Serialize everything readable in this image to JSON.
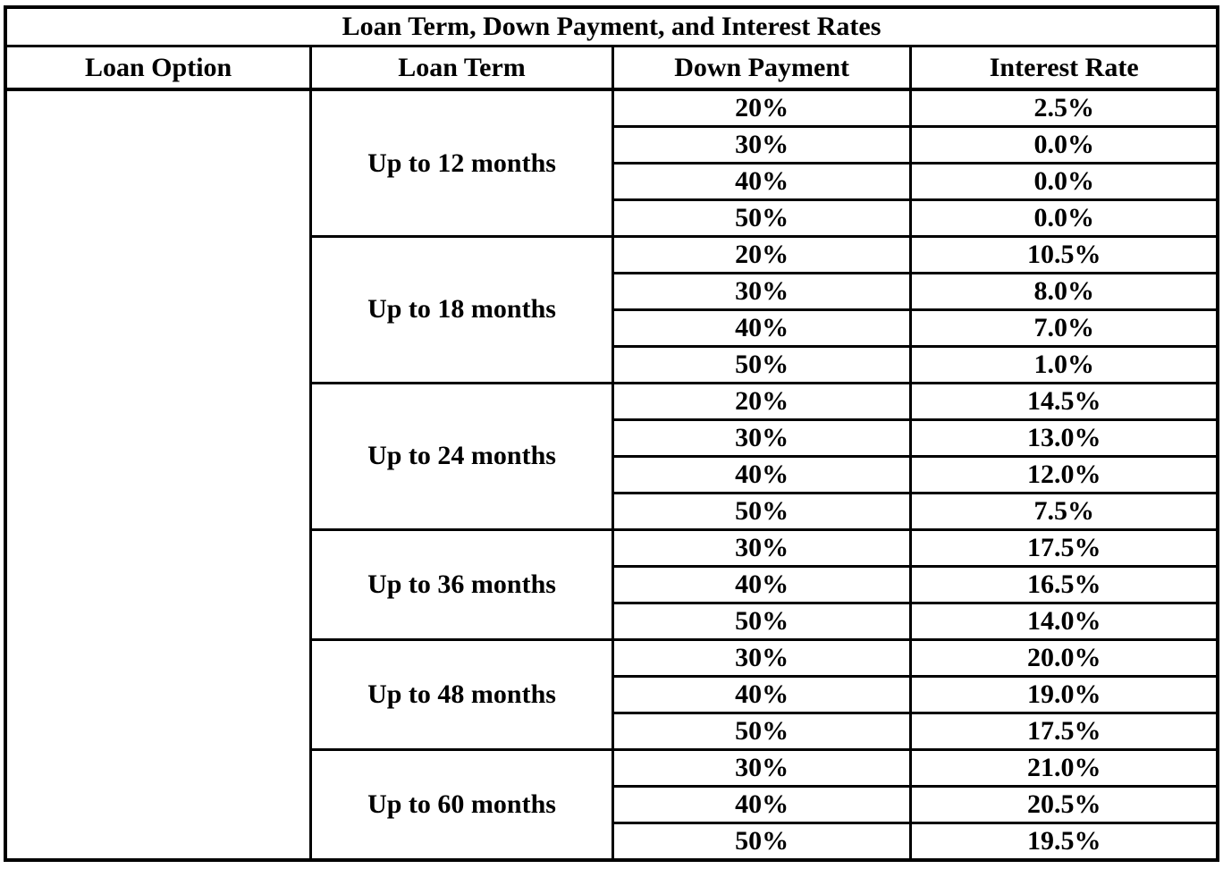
{
  "table": {
    "title": "Loan Term, Down Payment, and Interest Rates",
    "columns": [
      "Loan Option",
      "Loan Term",
      "Down Payment",
      "Interest Rate"
    ],
    "loan_option_value": "",
    "groups": [
      {
        "term": "Up to 12 months",
        "rows": [
          {
            "down_payment": "20%",
            "interest_rate": "2.5%"
          },
          {
            "down_payment": "30%",
            "interest_rate": "0.0%"
          },
          {
            "down_payment": "40%",
            "interest_rate": "0.0%"
          },
          {
            "down_payment": "50%",
            "interest_rate": "0.0%"
          }
        ]
      },
      {
        "term": "Up to 18 months",
        "rows": [
          {
            "down_payment": "20%",
            "interest_rate": "10.5%"
          },
          {
            "down_payment": "30%",
            "interest_rate": "8.0%"
          },
          {
            "down_payment": "40%",
            "interest_rate": "7.0%"
          },
          {
            "down_payment": "50%",
            "interest_rate": "1.0%"
          }
        ]
      },
      {
        "term": "Up to 24 months",
        "rows": [
          {
            "down_payment": "20%",
            "interest_rate": "14.5%"
          },
          {
            "down_payment": "30%",
            "interest_rate": "13.0%"
          },
          {
            "down_payment": "40%",
            "interest_rate": "12.0%"
          },
          {
            "down_payment": "50%",
            "interest_rate": "7.5%"
          }
        ]
      },
      {
        "term": "Up to 36 months",
        "rows": [
          {
            "down_payment": "30%",
            "interest_rate": "17.5%"
          },
          {
            "down_payment": "40%",
            "interest_rate": "16.5%"
          },
          {
            "down_payment": "50%",
            "interest_rate": "14.0%"
          }
        ]
      },
      {
        "term": "Up to 48 months",
        "rows": [
          {
            "down_payment": "30%",
            "interest_rate": "20.0%"
          },
          {
            "down_payment": "40%",
            "interest_rate": "19.0%"
          },
          {
            "down_payment": "50%",
            "interest_rate": "17.5%"
          }
        ]
      },
      {
        "term": "Up to 60 months",
        "rows": [
          {
            "down_payment": "30%",
            "interest_rate": "21.0%"
          },
          {
            "down_payment": "40%",
            "interest_rate": "20.5%"
          },
          {
            "down_payment": "50%",
            "interest_rate": "19.5%"
          }
        ]
      }
    ]
  }
}
